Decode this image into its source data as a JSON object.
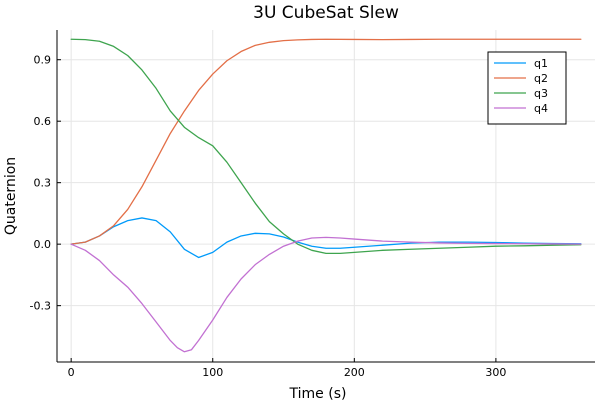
{
  "chart_data": {
    "type": "line",
    "title": "3U CubeSat Slew",
    "xlabel": "Time (s)",
    "ylabel": "Quaternion",
    "xlim": [
      -10,
      370
    ],
    "ylim": [
      -0.575,
      1.045
    ],
    "x_ticks": [
      0,
      100,
      200,
      300
    ],
    "x_tick_labels": [
      "0",
      "100",
      "200",
      "300"
    ],
    "y_ticks": [
      -0.3,
      0.0,
      0.3,
      0.6,
      0.9
    ],
    "y_tick_labels": [
      "-0.3",
      "0.0",
      "0.3",
      "0.6",
      "0.9"
    ],
    "grid": true,
    "legend_position": "top-right",
    "series": [
      {
        "name": "q1",
        "color": "#009AFA",
        "x": [
          0,
          10,
          20,
          30,
          40,
          50,
          60,
          70,
          80,
          90,
          100,
          110,
          120,
          130,
          140,
          150,
          160,
          170,
          180,
          190,
          200,
          220,
          240,
          260,
          280,
          300,
          320,
          340,
          360
        ],
        "y": [
          0,
          0.01,
          0.04,
          0.085,
          0.115,
          0.128,
          0.115,
          0.06,
          -0.025,
          -0.065,
          -0.04,
          0.01,
          0.04,
          0.053,
          0.05,
          0.035,
          0.01,
          -0.01,
          -0.02,
          -0.02,
          -0.015,
          -0.005,
          0.005,
          0.01,
          0.01,
          0.008,
          0.005,
          0.003,
          0.002
        ]
      },
      {
        "name": "q2",
        "color": "#E36F47",
        "x": [
          0,
          10,
          20,
          30,
          40,
          50,
          60,
          70,
          80,
          90,
          100,
          110,
          120,
          130,
          140,
          150,
          160,
          170,
          180,
          200,
          220,
          240,
          260,
          280,
          300,
          320,
          340,
          360
        ],
        "y": [
          0,
          0.01,
          0.04,
          0.09,
          0.17,
          0.28,
          0.41,
          0.54,
          0.65,
          0.75,
          0.83,
          0.895,
          0.94,
          0.97,
          0.985,
          0.993,
          0.997,
          0.999,
          1.0,
          0.999,
          0.998,
          0.999,
          1.0,
          1.0,
          1.0,
          1.0,
          1.0,
          1.0
        ]
      },
      {
        "name": "q3",
        "color": "#3EA44E",
        "x": [
          0,
          10,
          20,
          30,
          40,
          50,
          60,
          70,
          80,
          90,
          100,
          110,
          120,
          130,
          140,
          150,
          160,
          170,
          180,
          190,
          200,
          220,
          240,
          260,
          280,
          300,
          320,
          340,
          360
        ],
        "y": [
          1.0,
          0.998,
          0.99,
          0.965,
          0.92,
          0.85,
          0.76,
          0.65,
          0.57,
          0.52,
          0.48,
          0.4,
          0.3,
          0.2,
          0.11,
          0.05,
          0.0,
          -0.03,
          -0.045,
          -0.045,
          -0.04,
          -0.03,
          -0.025,
          -0.02,
          -0.015,
          -0.01,
          -0.008,
          -0.005,
          -0.003
        ]
      },
      {
        "name": "q4",
        "color": "#C271D2",
        "x": [
          0,
          10,
          20,
          30,
          40,
          50,
          60,
          70,
          75,
          80,
          85,
          90,
          100,
          110,
          120,
          130,
          140,
          150,
          160,
          170,
          180,
          190,
          200,
          220,
          240,
          260,
          280,
          300,
          320,
          340,
          360
        ],
        "y": [
          0,
          -0.03,
          -0.08,
          -0.15,
          -0.21,
          -0.29,
          -0.38,
          -0.47,
          -0.505,
          -0.525,
          -0.515,
          -0.47,
          -0.37,
          -0.26,
          -0.17,
          -0.1,
          -0.05,
          -0.01,
          0.015,
          0.03,
          0.033,
          0.03,
          0.025,
          0.015,
          0.01,
          0.006,
          0.004,
          0.003,
          0.002,
          0.001,
          0
        ]
      }
    ]
  }
}
